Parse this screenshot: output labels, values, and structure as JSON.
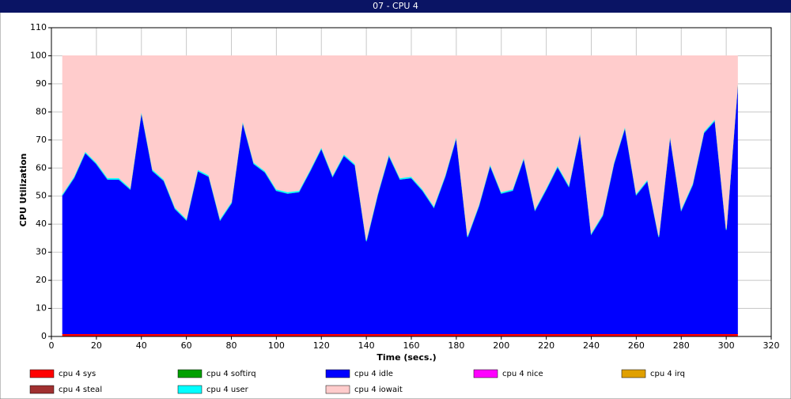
{
  "chart_data": {
    "type": "stacked_area",
    "title": "07 - CPU 4",
    "xlabel": "Time (secs.)",
    "ylabel": "CPU Utilization",
    "x": [
      5,
      10,
      15,
      20,
      25,
      30,
      35,
      40,
      45,
      50,
      55,
      60,
      65,
      70,
      75,
      80,
      85,
      90,
      95,
      100,
      105,
      110,
      115,
      120,
      125,
      130,
      135,
      140,
      145,
      150,
      155,
      160,
      165,
      170,
      175,
      180,
      185,
      190,
      195,
      200,
      205,
      210,
      215,
      220,
      225,
      230,
      235,
      240,
      245,
      250,
      255,
      260,
      265,
      270,
      275,
      280,
      285,
      290,
      295,
      300,
      305
    ],
    "xlim": [
      0,
      320
    ],
    "xticks": [
      0,
      20,
      40,
      60,
      80,
      100,
      120,
      140,
      160,
      180,
      200,
      220,
      240,
      260,
      280,
      300,
      320
    ],
    "ylim": [
      0,
      110
    ],
    "yticks": [
      0,
      10,
      20,
      30,
      40,
      50,
      60,
      70,
      80,
      90,
      100,
      110
    ],
    "grid": true,
    "series": [
      {
        "name": "cpu 4 sys",
        "color": "#ff0000",
        "values": [
          1,
          1,
          1,
          1,
          1,
          1,
          1,
          1,
          1,
          1,
          1,
          1,
          1,
          1,
          1,
          1,
          1,
          1,
          1,
          1,
          1,
          1,
          1,
          1,
          1,
          1,
          1,
          1,
          1,
          1,
          1,
          1,
          1,
          1,
          1,
          1,
          1,
          1,
          1,
          1,
          1,
          1,
          1,
          1,
          1,
          1,
          1,
          1,
          1,
          1,
          1,
          1,
          1,
          1,
          1,
          1,
          1,
          1,
          1,
          1,
          1
        ]
      },
      {
        "name": "cpu 4 softirq",
        "color": "#00a000",
        "values": [
          0,
          0,
          0,
          0,
          0,
          0,
          0,
          0,
          0,
          0,
          0,
          0,
          0,
          0,
          0,
          0,
          0,
          0,
          0,
          0,
          0,
          0,
          0,
          0,
          0,
          0,
          0,
          0,
          0,
          0,
          0,
          0,
          0,
          0,
          0,
          0,
          0,
          0,
          0,
          0,
          0,
          0,
          0,
          0,
          0,
          0,
          0,
          0,
          0,
          0,
          0,
          0,
          0,
          0,
          0,
          0,
          0,
          0,
          0,
          0,
          0
        ]
      },
      {
        "name": "cpu 4 idle",
        "color": "#0000ff",
        "values": [
          49.5,
          55.5,
          64.5,
          60.5,
          55,
          55,
          51.5,
          79,
          58,
          54.5,
          44.5,
          40.5,
          58,
          56,
          40.5,
          46.5,
          75.5,
          60.5,
          57.5,
          51,
          50,
          50.5,
          58,
          66,
          56,
          63.5,
          60,
          33,
          49.5,
          63.5,
          55,
          55.5,
          51,
          45,
          56,
          70,
          34.5,
          45.5,
          60,
          50,
          51,
          62.5,
          44,
          51.5,
          59.5,
          52.5,
          71.5,
          35.5,
          42,
          60.5,
          73.5,
          49.5,
          54.5,
          34.5,
          70.5,
          44,
          53,
          71.5,
          76,
          37,
          88
        ]
      },
      {
        "name": "cpu 4 nice",
        "color": "#ff00ff",
        "values": [
          0,
          0,
          0,
          0,
          0,
          0,
          0,
          0,
          0,
          0,
          0,
          0,
          0,
          0,
          0,
          0,
          0,
          0,
          0,
          0,
          0,
          0,
          0,
          0,
          0,
          0,
          0,
          0,
          0,
          0,
          0,
          0,
          0,
          0,
          0,
          0,
          0,
          0,
          0,
          0,
          0,
          0,
          0,
          0,
          0,
          0,
          0,
          0,
          0,
          0,
          0,
          0,
          0,
          0,
          0,
          0,
          0,
          0,
          0,
          0,
          0
        ]
      },
      {
        "name": "cpu 4 irq",
        "color": "#e0a000",
        "values": [
          0,
          0,
          0,
          0,
          0,
          0,
          0,
          0,
          0,
          0,
          0,
          0,
          0,
          0,
          0,
          0,
          0,
          0,
          0,
          0,
          0,
          0,
          0,
          0,
          0,
          0,
          0,
          0,
          0,
          0,
          0,
          0,
          0,
          0,
          0,
          0,
          0,
          0,
          0,
          0,
          0,
          0,
          0,
          0,
          0,
          0,
          0,
          0,
          0,
          0,
          0,
          0,
          0,
          0,
          0,
          0,
          0,
          0,
          0,
          0,
          0
        ]
      },
      {
        "name": "cpu 4 steal",
        "color": "#a03030",
        "values": [
          0,
          0,
          0,
          0,
          0,
          0,
          0,
          0,
          0,
          0,
          0,
          0,
          0,
          0,
          0,
          0,
          0,
          0,
          0,
          0,
          0,
          0,
          0,
          0,
          0,
          0,
          0,
          0,
          0,
          0,
          0,
          0,
          0,
          0,
          0,
          0,
          0,
          0,
          0,
          0,
          0,
          0,
          0,
          0,
          0,
          0,
          0,
          0,
          0,
          0,
          0,
          0,
          0,
          0,
          0,
          0,
          0,
          0,
          0,
          0,
          0
        ]
      },
      {
        "name": "cpu 4 user",
        "color": "#00ffff",
        "values": [
          0.5,
          0.5,
          0.5,
          0.5,
          0.5,
          0.5,
          0.5,
          0.5,
          0.5,
          0.5,
          0.5,
          0.5,
          0.5,
          0.5,
          0.5,
          0.5,
          0.5,
          0.5,
          0.5,
          0.5,
          0.5,
          0.5,
          0.5,
          0.5,
          0.5,
          0.5,
          0.5,
          0.5,
          0.5,
          0.5,
          0.5,
          0.5,
          0.5,
          0.5,
          0.5,
          0.5,
          0.5,
          0.5,
          0.5,
          0.5,
          0.5,
          0.5,
          0.5,
          0.5,
          0.5,
          0.5,
          0.5,
          0.5,
          0.5,
          0.5,
          0.5,
          0.5,
          0.5,
          0.5,
          0.5,
          0.5,
          0.5,
          0.5,
          0.5,
          0.5,
          0.5
        ]
      },
      {
        "name": "cpu 4 iowait",
        "color": "#ffcccc",
        "values": [
          49,
          43,
          34,
          38,
          43.5,
          43.5,
          47,
          19.5,
          40.5,
          44,
          54,
          58,
          40.5,
          42.5,
          58,
          52,
          23,
          38,
          41,
          47.5,
          48.5,
          48,
          40.5,
          32.5,
          42.5,
          35,
          38.5,
          65.5,
          49,
          35,
          43.5,
          43,
          47.5,
          53.5,
          42.5,
          28.5,
          64,
          53,
          38.5,
          48.5,
          47.5,
          36,
          54.5,
          47,
          39,
          46,
          27,
          63,
          56.5,
          38,
          25,
          49,
          44,
          64,
          28,
          54.5,
          45.5,
          27,
          22.5,
          61.5,
          10.5
        ]
      }
    ]
  }
}
